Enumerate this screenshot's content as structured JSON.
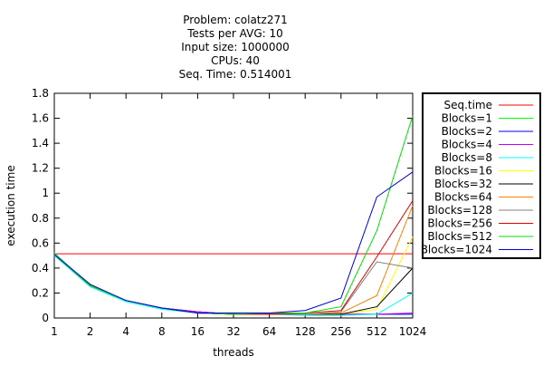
{
  "chart_data": {
    "type": "line",
    "title_lines": [
      "Problem: colatz271",
      "Tests per AVG: 10",
      "Input size: 1000000",
      "CPUs: 40",
      "Seq. Time: 0.514001"
    ],
    "xlabel": "threads",
    "ylabel": "execution time",
    "x_categories": [
      "1",
      "2",
      "4",
      "8",
      "16",
      "32",
      "64",
      "128",
      "256",
      "512",
      "1024"
    ],
    "y_ticks": [
      "0",
      "0.2",
      "0.4",
      "0.6",
      "0.8",
      "1",
      "1.2",
      "1.4",
      "1.6",
      "1.8"
    ],
    "ylim": [
      0,
      1.8
    ],
    "grid": false,
    "legend_position": "right-outside",
    "reference_line": {
      "name": "Seq.time",
      "value": 0.514001,
      "color": "#ff0000"
    },
    "series": [
      {
        "name": "Blocks=1",
        "color": "#00ff00",
        "values": [
          0.52,
          0.26,
          0.14,
          0.08,
          0.05,
          0.03,
          0.03,
          0.03,
          0.03,
          0.03,
          0.03
        ]
      },
      {
        "name": "Blocks=2",
        "color": "#0000ff",
        "values": [
          0.5,
          0.26,
          0.14,
          0.08,
          0.05,
          0.03,
          0.03,
          0.03,
          0.03,
          0.03,
          0.03
        ]
      },
      {
        "name": "Blocks=4",
        "color": "#c000ff",
        "values": [
          0.51,
          0.26,
          0.14,
          0.08,
          0.05,
          0.03,
          0.03,
          0.03,
          0.03,
          0.03,
          0.04
        ]
      },
      {
        "name": "Blocks=8",
        "color": "#00ffff",
        "values": [
          0.5,
          0.25,
          0.13,
          0.07,
          0.04,
          0.03,
          0.03,
          0.02,
          0.02,
          0.03,
          0.2
        ]
      },
      {
        "name": "Blocks=16",
        "color": "#ffff00",
        "values": [
          0.51,
          0.26,
          0.14,
          0.08,
          0.04,
          0.03,
          0.03,
          0.03,
          0.03,
          0.07,
          0.65
        ]
      },
      {
        "name": "Blocks=32",
        "color": "#000000",
        "values": [
          0.51,
          0.26,
          0.14,
          0.08,
          0.04,
          0.03,
          0.03,
          0.03,
          0.03,
          0.09,
          0.4
        ]
      },
      {
        "name": "Blocks=64",
        "color": "#ff8000",
        "values": [
          0.51,
          0.26,
          0.14,
          0.08,
          0.04,
          0.03,
          0.03,
          0.03,
          0.04,
          0.18,
          0.9
        ]
      },
      {
        "name": "Blocks=128",
        "color": "#808080",
        "values": [
          0.51,
          0.26,
          0.14,
          0.08,
          0.04,
          0.03,
          0.03,
          0.03,
          0.05,
          0.45,
          0.4
        ]
      },
      {
        "name": "Blocks=256",
        "color": "#e00000",
        "values": [
          0.51,
          0.26,
          0.14,
          0.08,
          0.04,
          0.03,
          0.03,
          0.04,
          0.06,
          0.49,
          0.94
        ]
      },
      {
        "name": "Blocks=512",
        "color": "#00e000",
        "values": [
          0.51,
          0.26,
          0.14,
          0.08,
          0.04,
          0.03,
          0.04,
          0.04,
          0.09,
          0.7,
          1.62
        ]
      },
      {
        "name": "Blocks=1024",
        "color": "#0000e0",
        "values": [
          0.51,
          0.27,
          0.14,
          0.08,
          0.04,
          0.04,
          0.04,
          0.06,
          0.16,
          0.97,
          1.17
        ]
      }
    ]
  }
}
